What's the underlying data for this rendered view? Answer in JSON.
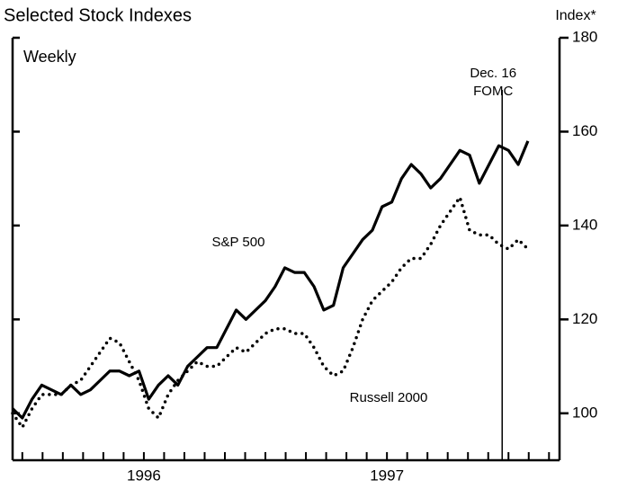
{
  "chart_data": {
    "type": "line",
    "title": "Selected Stock Indexes",
    "subtitle": "Weekly",
    "y_axis_label": "Index*",
    "x": [
      1995.96,
      1996,
      1996.04,
      1996.08,
      1996.12,
      1996.16,
      1996.2,
      1996.24,
      1996.28,
      1996.32,
      1996.36,
      1996.4,
      1996.44,
      1996.48,
      1996.52,
      1996.56,
      1996.6,
      1996.64,
      1996.68,
      1996.72,
      1996.76,
      1996.8,
      1996.84,
      1996.88,
      1996.92,
      1996.96,
      1997,
      1997.04,
      1997.08,
      1997.12,
      1997.16,
      1997.2,
      1997.24,
      1997.28,
      1997.32,
      1997.36,
      1997.4,
      1997.44,
      1997.48,
      1997.52,
      1997.56,
      1997.6,
      1997.64,
      1997.68,
      1997.72,
      1997.76,
      1997.8,
      1997.84,
      1997.88,
      1997.92,
      1997.96,
      1998,
      1998.04,
      1998.08
    ],
    "series": [
      {
        "name": "S&P 500",
        "color": "#000000",
        "dash": "solid",
        "values": [
          101,
          99,
          103,
          106,
          105,
          104,
          106,
          104,
          105,
          107,
          109,
          109,
          108,
          109,
          103,
          106,
          108,
          106,
          110,
          112,
          114,
          114,
          118,
          122,
          120,
          122,
          124,
          127,
          131,
          130,
          130,
          127,
          122,
          123,
          131,
          134,
          137,
          139,
          144,
          145,
          150,
          153,
          151,
          148,
          150,
          153,
          156,
          155,
          149,
          153,
          157,
          156,
          153,
          158
        ]
      },
      {
        "name": "Russell 2000",
        "color": "#000000",
        "dash": "dotted",
        "values": [
          100,
          97,
          101,
          104,
          104,
          104,
          106,
          107,
          110,
          113,
          116,
          115,
          111,
          107,
          101,
          99,
          104,
          107,
          109,
          111,
          110,
          110,
          112,
          114,
          113,
          115,
          117,
          118,
          118,
          117,
          117,
          114,
          110,
          108,
          109,
          114,
          120,
          124,
          126,
          128,
          131,
          133,
          133,
          136,
          140,
          143,
          146,
          139,
          138,
          138,
          136,
          135,
          137,
          135
        ]
      }
    ],
    "xlim": [
      1995.96,
      1998.21
    ],
    "xticks": [
      1996,
      1996.0833,
      1996.1667,
      1996.25,
      1996.3333,
      1996.4167,
      1996.5,
      1996.5833,
      1996.6667,
      1996.75,
      1996.8333,
      1996.9167,
      1997,
      1997.0833,
      1997.1667,
      1997.25,
      1997.3333,
      1997.4167,
      1997.5,
      1997.5833,
      1997.6667,
      1997.75,
      1997.8333,
      1997.9167,
      1998,
      1998.0833,
      1998.1667
    ],
    "xtick_labels": [
      {
        "value": 1996.5,
        "label": "1996"
      },
      {
        "value": 1997.5,
        "label": "1997"
      }
    ],
    "ylim": [
      90,
      180
    ],
    "yticks": [
      100,
      120,
      140,
      160,
      180
    ],
    "yaxis_side": "right",
    "annotations": [
      {
        "x": 1997.974,
        "lines": [
          "Dec. 16",
          "FOMC"
        ]
      }
    ]
  }
}
